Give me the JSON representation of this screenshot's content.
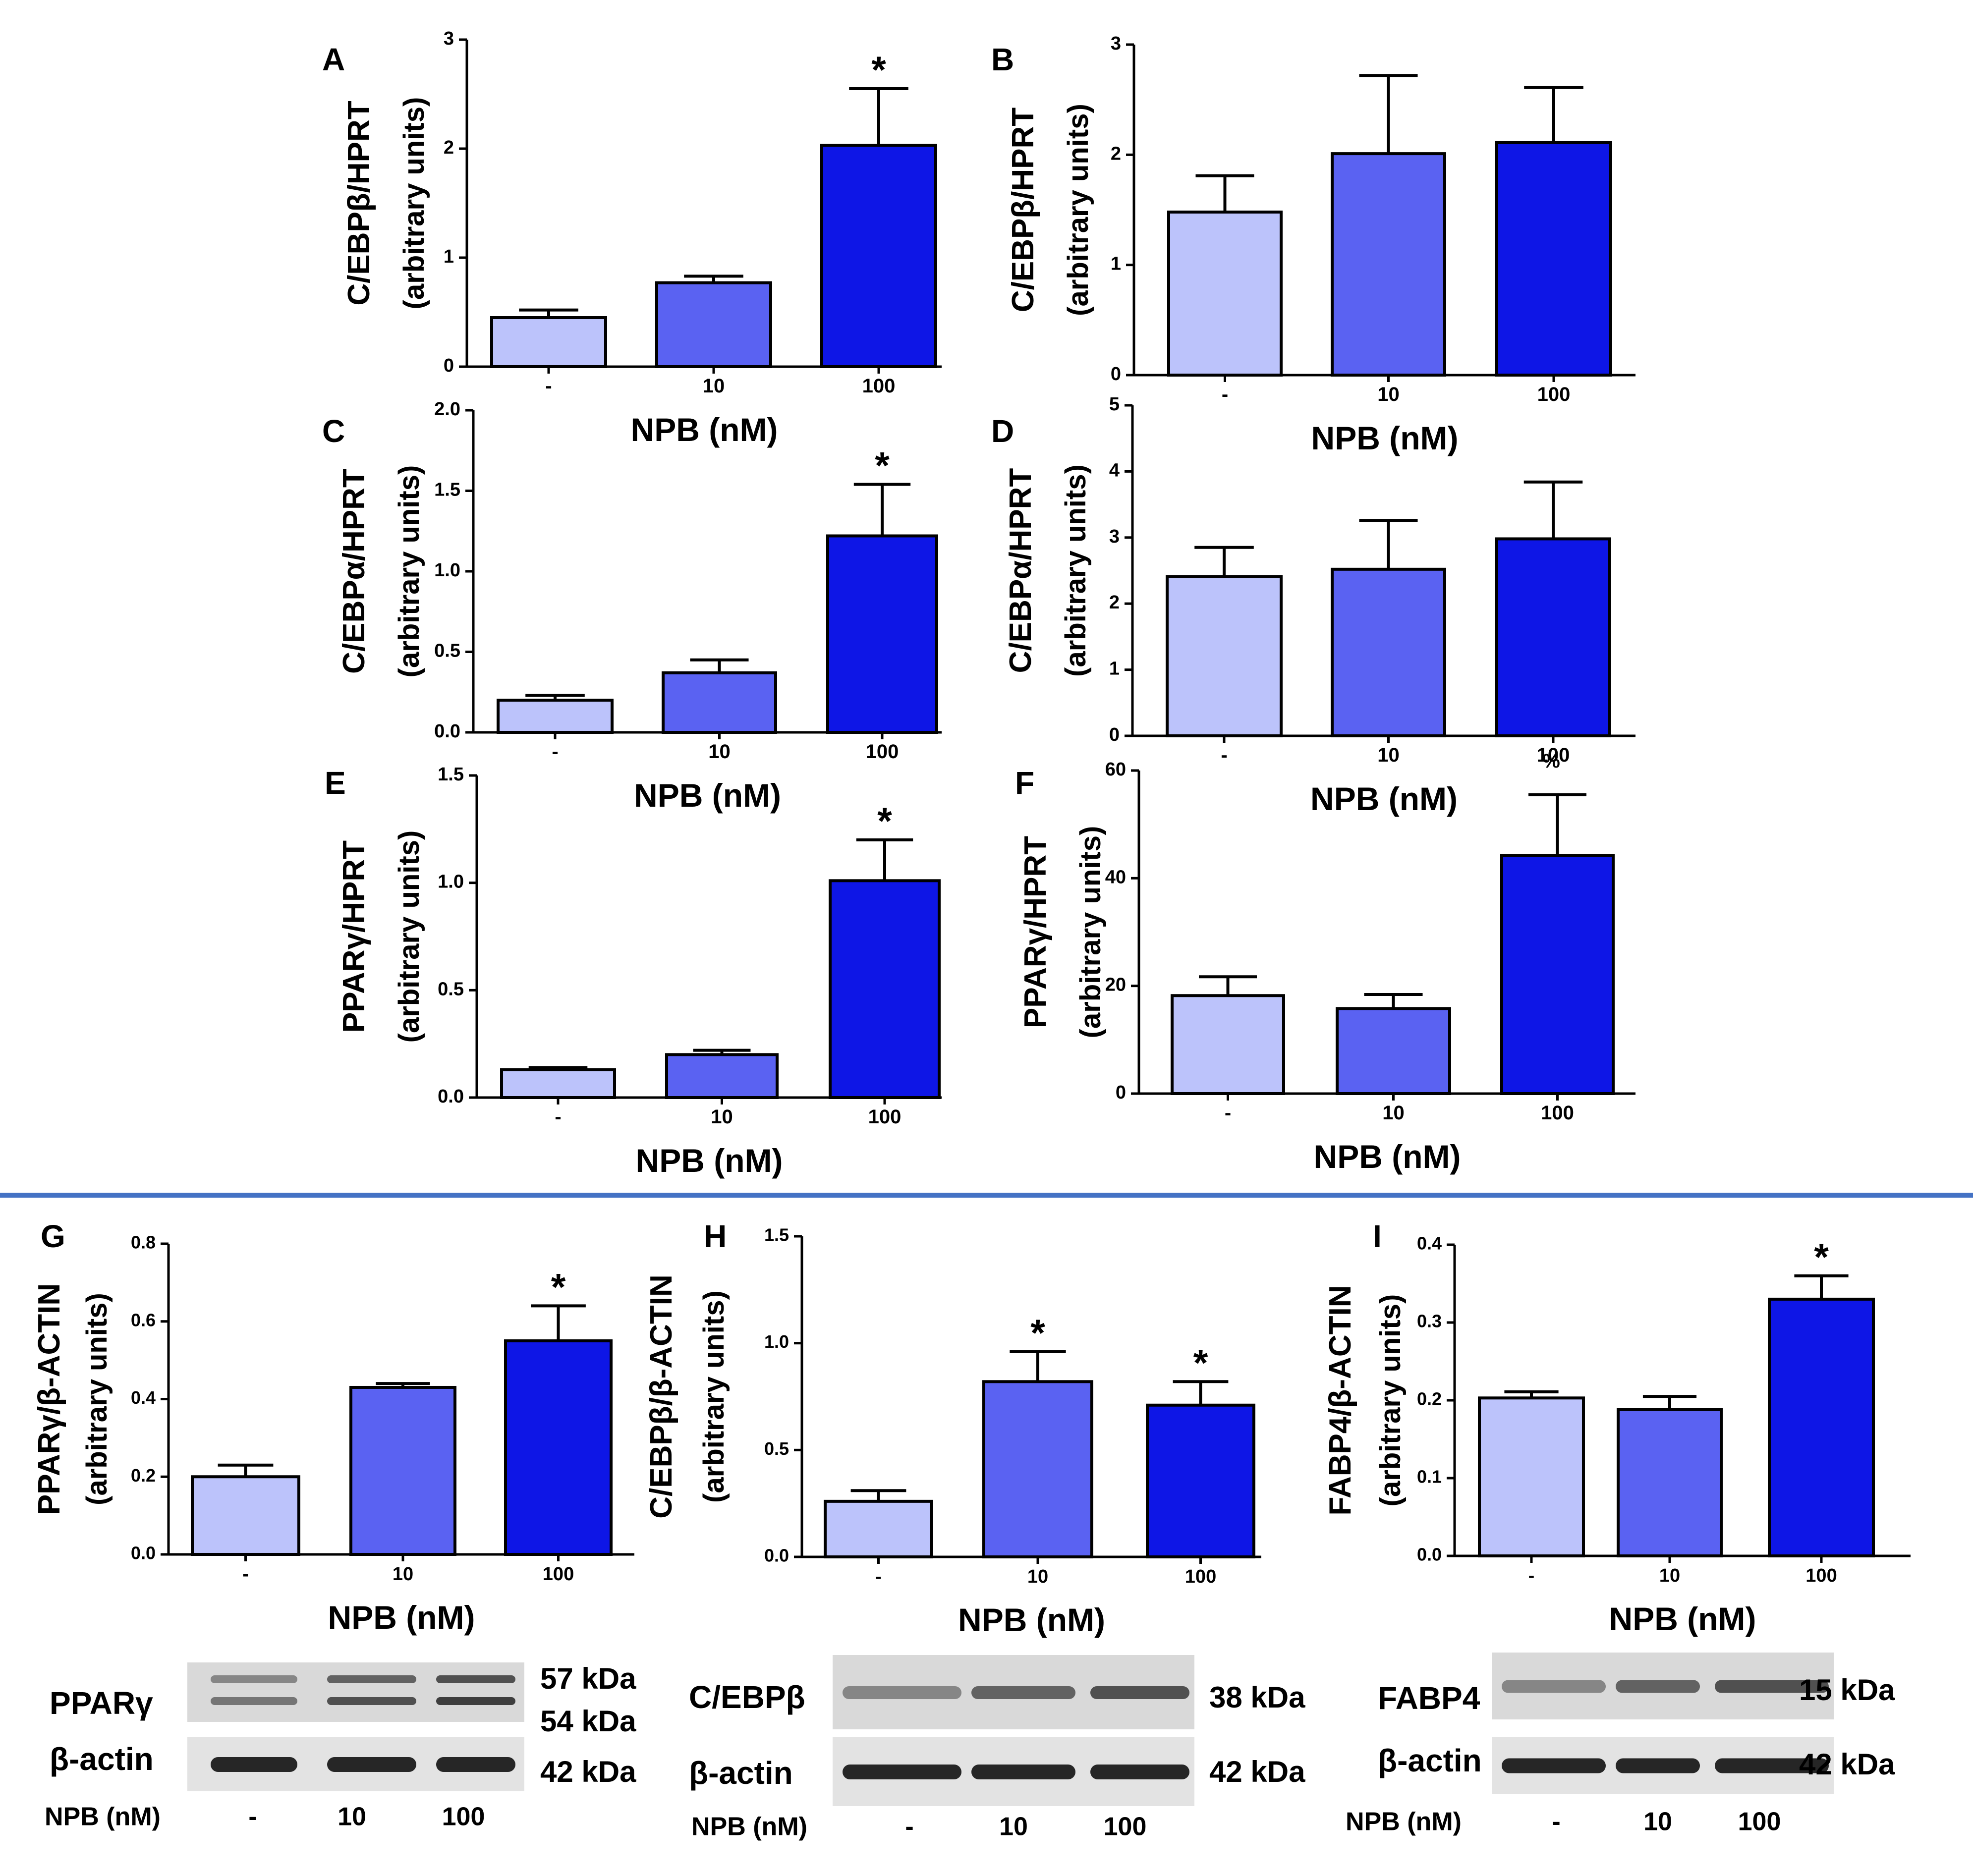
{
  "colors": {
    "control": "#bcc3fb",
    "nm10": "#5a62f2",
    "nm100": "#0e16e6",
    "divider": "#4472c4",
    "axis": "#000000"
  },
  "chart_data": [
    {
      "type": "bar",
      "panel": "A",
      "categories": [
        "-",
        "10",
        "100"
      ],
      "values": [
        0.45,
        0.77,
        2.03
      ],
      "errors": [
        0.07,
        0.06,
        0.52
      ],
      "significant": [
        false,
        false,
        true
      ],
      "ylabel_line1": "C/EBPβ/HPRT",
      "ylabel_line2": "(arbitrary units)",
      "xlabel": "NPB (nM)",
      "ylim": [
        0,
        3
      ],
      "yticks": [
        "0",
        "1",
        "2",
        "3"
      ]
    },
    {
      "type": "bar",
      "panel": "B",
      "categories": [
        "-",
        "10",
        "100"
      ],
      "values": [
        1.48,
        2.01,
        2.11
      ],
      "errors": [
        0.33,
        0.71,
        0.5
      ],
      "significant": [
        false,
        false,
        false
      ],
      "ylabel_line1": "C/EBPβ/HPRT",
      "ylabel_line2": "(arbitrary units)",
      "xlabel": "NPB (nM)",
      "ylim": [
        0,
        3
      ],
      "yticks": [
        "0",
        "1",
        "2",
        "3"
      ]
    },
    {
      "type": "bar",
      "panel": "C",
      "categories": [
        "-",
        "10",
        "100"
      ],
      "values": [
        0.2,
        0.37,
        1.22
      ],
      "errors": [
        0.03,
        0.08,
        0.32
      ],
      "significant": [
        false,
        false,
        true
      ],
      "ylabel_line1": "C/EBPα/HPRT",
      "ylabel_line2": "(arbitrary units)",
      "xlabel": "NPB (nM)",
      "ylim": [
        0,
        2
      ],
      "yticks": [
        "0.0",
        "0.5",
        "1.0",
        "1.5",
        "2.0"
      ]
    },
    {
      "type": "bar",
      "panel": "D",
      "categories": [
        "-",
        "10",
        "100"
      ],
      "values": [
        2.41,
        2.52,
        2.98
      ],
      "errors": [
        0.44,
        0.74,
        0.86
      ],
      "significant": [
        false,
        false,
        false
      ],
      "ylabel_line1": "C/EBPα/HPRT",
      "ylabel_line2": "(arbitrary units)",
      "xlabel": "NPB (nM)",
      "ylim": [
        0,
        5
      ],
      "yticks": [
        "0",
        "1",
        "2",
        "3",
        "4",
        "5"
      ]
    },
    {
      "type": "bar",
      "panel": "E",
      "categories": [
        "-",
        "10",
        "100"
      ],
      "values": [
        0.13,
        0.2,
        1.01
      ],
      "errors": [
        0.01,
        0.02,
        0.19
      ],
      "significant": [
        false,
        false,
        true
      ],
      "ylabel_line1": "PPARγ/HPRT",
      "ylabel_line2": "(arbitrary units)",
      "xlabel": "NPB (nM)",
      "ylim": [
        0,
        1.5
      ],
      "yticks": [
        "0.0",
        "0.5",
        "1.0",
        "1.5"
      ]
    },
    {
      "type": "bar",
      "panel": "F",
      "categories": [
        "-",
        "10",
        "100"
      ],
      "values": [
        18.2,
        15.8,
        44.2
      ],
      "errors": [
        3.5,
        2.6,
        11.3
      ],
      "significant": [
        false,
        false,
        false
      ],
      "ylabel_line1": "PPARγ/HPRT",
      "ylabel_line2": "(arbitrary units)",
      "xlabel": "NPB (nM)",
      "ylim": [
        0,
        60
      ],
      "yticks": [
        "0",
        "20",
        "40",
        "60"
      ]
    },
    {
      "type": "bar",
      "panel": "G",
      "categories": [
        "-",
        "10",
        "100"
      ],
      "values": [
        0.2,
        0.43,
        0.55
      ],
      "errors": [
        0.03,
        0.01,
        0.09
      ],
      "significant": [
        false,
        false,
        true
      ],
      "ylabel_line1": "PPARγ/β-ACTIN",
      "ylabel_line2": "(arbitrary units)",
      "xlabel": "NPB (nM)",
      "ylim": [
        0,
        0.8
      ],
      "yticks": [
        "0.0",
        "0.2",
        "0.4",
        "0.6",
        "0.8"
      ]
    },
    {
      "type": "bar",
      "panel": "H",
      "categories": [
        "-",
        "10",
        "100"
      ],
      "values": [
        0.26,
        0.82,
        0.71
      ],
      "errors": [
        0.05,
        0.14,
        0.11
      ],
      "significant": [
        false,
        true,
        true
      ],
      "ylabel_line1": "C/EBPβ/β-ACTIN",
      "ylabel_line2": "(arbitrary units)",
      "xlabel": "NPB (nM)",
      "ylim": [
        0,
        1.5
      ],
      "yticks": [
        "0.0",
        "0.5",
        "1.0",
        "1.5"
      ]
    },
    {
      "type": "bar",
      "panel": "I",
      "categories": [
        "-",
        "10",
        "100"
      ],
      "values": [
        0.203,
        0.188,
        0.33
      ],
      "errors": [
        0.008,
        0.017,
        0.03
      ],
      "significant": [
        false,
        false,
        true
      ],
      "ylabel_line1": "FABP4/β-ACTIN",
      "ylabel_line2": "(arbitrary units)",
      "xlabel": "NPB (nM)",
      "ylim": [
        0,
        0.4
      ],
      "yticks": [
        "0.0",
        "0.1",
        "0.2",
        "0.3",
        "0.4"
      ]
    }
  ],
  "blots": [
    {
      "panel": "G",
      "row1_label": "PPARγ",
      "row1_kda": [
        "57 kDa",
        "54 kDa"
      ],
      "row2_label": "β-actin",
      "row2_kda": [
        "42 kDa"
      ],
      "lane_axis_label": "NPB (nM)",
      "lanes": [
        "-",
        "10",
        "100"
      ]
    },
    {
      "panel": "H",
      "row1_label": "C/EBPβ",
      "row1_kda": [
        "38 kDa"
      ],
      "row2_label": "β-actin",
      "row2_kda": [
        "42 kDa"
      ],
      "lane_axis_label": "NPB (nM)",
      "lanes": [
        "-",
        "10",
        "100"
      ]
    },
    {
      "panel": "I",
      "row1_label": "FABP4",
      "row1_kda": [
        "15 kDa"
      ],
      "row2_label": "β-actin",
      "row2_kda": [
        "42 kDa"
      ],
      "lane_axis_label": "NPB (nM)",
      "lanes": [
        "-",
        "10",
        "100"
      ]
    }
  ],
  "significance_marker": "*",
  "stray_glyph_F": "%"
}
